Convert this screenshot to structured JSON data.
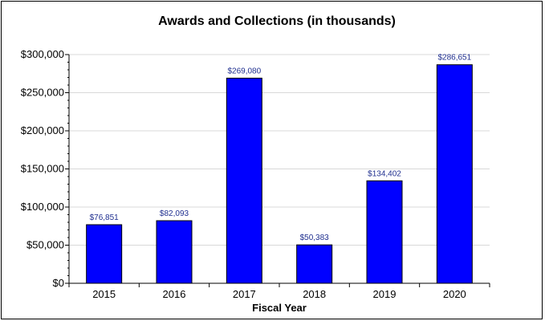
{
  "chart_data": {
    "type": "bar",
    "title": "Awards and Collections (in thousands)",
    "xlabel": "Fiscal Year",
    "ylabel": "",
    "categories": [
      "2015",
      "2016",
      "2017",
      "2018",
      "2019",
      "2020"
    ],
    "values": [
      76851,
      82093,
      269080,
      50383,
      134402,
      286651
    ],
    "data_labels": [
      "$76,851",
      "$82,093",
      "$269,080",
      "$50,383",
      "$134,402",
      "$286,651"
    ],
    "ylim": [
      0,
      300000
    ],
    "yticks": [
      0,
      50000,
      100000,
      150000,
      200000,
      250000,
      300000
    ],
    "ytick_labels": [
      "$0",
      "$50,000",
      "$100,000",
      "$150,000",
      "$200,000",
      "$250,000",
      "$300,000"
    ],
    "grid": true,
    "legend": "none",
    "colors": {
      "bar": "#0000ff",
      "bar_edge": "#000000",
      "grid": "#d9d9d9",
      "data_label": "#1f2f8f"
    }
  }
}
